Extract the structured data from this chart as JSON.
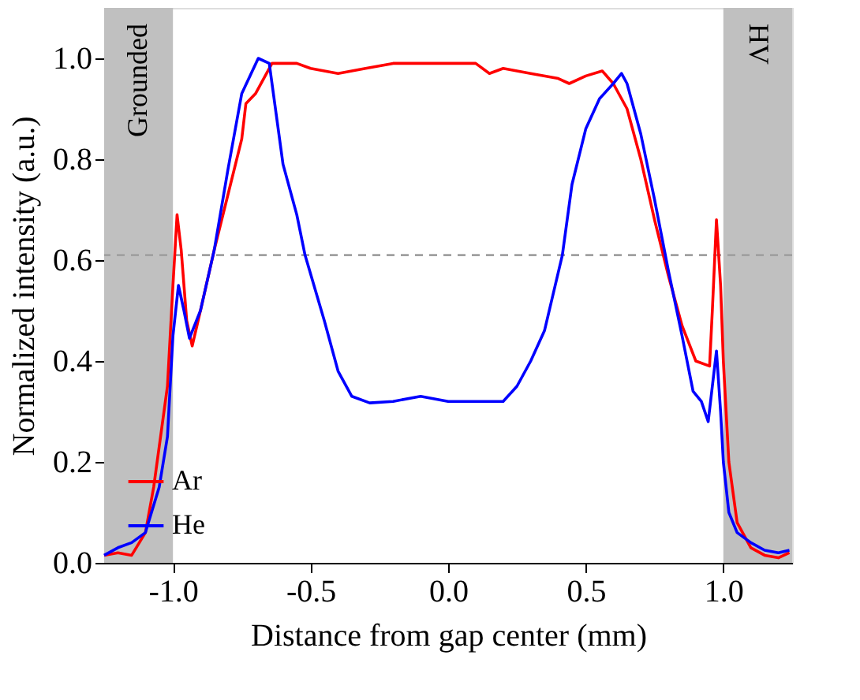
{
  "chart_data": {
    "type": "line",
    "xlabel": "Distance from gap center (mm)",
    "ylabel": "Normalized intensity (a.u.)",
    "xlim": [
      -1.25,
      1.25
    ],
    "ylim": [
      0,
      1.1
    ],
    "xticks": [
      {
        "value": -1,
        "label": "-1.0"
      },
      {
        "value": -0.5,
        "label": "-0.5"
      },
      {
        "value": 0,
        "label": "0.0"
      },
      {
        "value": 0.5,
        "label": "0.5"
      },
      {
        "value": 1,
        "label": "1.0"
      }
    ],
    "yticks": [
      {
        "value": 0,
        "label": "0.0"
      },
      {
        "value": 0.2,
        "label": "0.2"
      },
      {
        "value": 0.4,
        "label": "0.4"
      },
      {
        "value": 0.6,
        "label": "0.6"
      },
      {
        "value": 0.8,
        "label": "0.8"
      },
      {
        "value": 1,
        "label": "1.0"
      }
    ],
    "grid": false,
    "legend": "bottom left",
    "line_style": "solid",
    "marker": "none",
    "series": [
      {
        "name": "Ar",
        "color": "#ff0000",
        "x": [
          -1.25,
          -1.2,
          -1.15,
          -1.1,
          -1.07,
          -1.04,
          -1.02,
          -1.0,
          -0.985,
          -0.97,
          -0.95,
          -0.93,
          -0.9,
          -0.85,
          -0.8,
          -0.75,
          -0.735,
          -0.7,
          -0.64,
          -0.6,
          -0.55,
          -0.5,
          -0.4,
          -0.3,
          -0.2,
          -0.1,
          0.0,
          0.1,
          0.15,
          0.2,
          0.3,
          0.4,
          0.44,
          0.5,
          0.56,
          0.6,
          0.65,
          0.7,
          0.75,
          0.8,
          0.85,
          0.9,
          0.95,
          0.96,
          0.975,
          0.99,
          1.0,
          1.02,
          1.05,
          1.1,
          1.15,
          1.2,
          1.24
        ],
        "values": [
          0.015,
          0.02,
          0.015,
          0.06,
          0.15,
          0.27,
          0.35,
          0.55,
          0.69,
          0.62,
          0.48,
          0.43,
          0.5,
          0.62,
          0.73,
          0.84,
          0.91,
          0.93,
          0.99,
          0.99,
          0.99,
          0.98,
          0.97,
          0.98,
          0.99,
          0.99,
          0.99,
          0.99,
          0.97,
          0.98,
          0.97,
          0.96,
          0.95,
          0.965,
          0.975,
          0.95,
          0.9,
          0.8,
          0.68,
          0.57,
          0.47,
          0.4,
          0.39,
          0.5,
          0.68,
          0.55,
          0.4,
          0.2,
          0.08,
          0.03,
          0.015,
          0.01,
          0.02
        ]
      },
      {
        "name": "He",
        "color": "#0000ff",
        "x": [
          -1.25,
          -1.2,
          -1.15,
          -1.1,
          -1.05,
          -1.02,
          -1.0,
          -0.98,
          -0.96,
          -0.94,
          -0.9,
          -0.85,
          -0.8,
          -0.75,
          -0.69,
          -0.65,
          -0.6,
          -0.55,
          -0.52,
          -0.45,
          -0.4,
          -0.35,
          -0.285,
          -0.2,
          -0.1,
          0.0,
          0.1,
          0.2,
          0.25,
          0.3,
          0.35,
          0.415,
          0.45,
          0.5,
          0.55,
          0.6,
          0.63,
          0.65,
          0.7,
          0.75,
          0.8,
          0.85,
          0.89,
          0.92,
          0.945,
          0.975,
          0.99,
          1.0,
          1.02,
          1.05,
          1.1,
          1.15,
          1.2,
          1.24
        ],
        "values": [
          0.015,
          0.03,
          0.04,
          0.06,
          0.15,
          0.25,
          0.45,
          0.55,
          0.5,
          0.445,
          0.5,
          0.62,
          0.78,
          0.93,
          1.0,
          0.99,
          0.79,
          0.69,
          0.61,
          0.48,
          0.38,
          0.33,
          0.317,
          0.32,
          0.33,
          0.32,
          0.32,
          0.32,
          0.35,
          0.4,
          0.46,
          0.61,
          0.75,
          0.86,
          0.92,
          0.95,
          0.97,
          0.95,
          0.85,
          0.72,
          0.58,
          0.45,
          0.34,
          0.32,
          0.28,
          0.42,
          0.3,
          0.2,
          0.1,
          0.06,
          0.04,
          0.025,
          0.02,
          0.025
        ]
      }
    ],
    "ref_lines": [
      {
        "axis": "y",
        "value": 0.61,
        "color": "#a0a0a0",
        "line_style": "dashed"
      }
    ],
    "bands": [
      {
        "axis": "x",
        "from": -1.25,
        "to": -1.0,
        "label": "Grounded",
        "color": "#c0c0c0"
      },
      {
        "axis": "x",
        "from": 1.0,
        "to": 1.25,
        "label": "HV",
        "color": "#c0c0c0"
      }
    ]
  }
}
